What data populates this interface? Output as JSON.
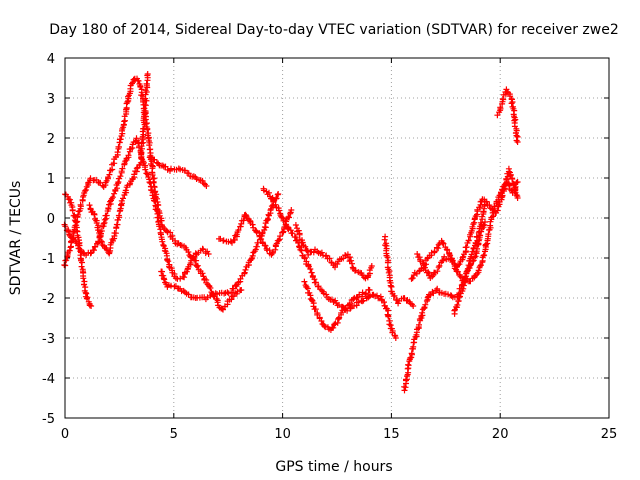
{
  "chart_data": {
    "type": "scatter",
    "title": "Day 180 of 2014, Sidereal Day-to-day VTEC variation (SDTVAR) for receiver zwe2",
    "xlabel": "GPS time / hours",
    "ylabel": "SDTVAR / TECUs",
    "xlim": [
      0,
      25
    ],
    "ylim": [
      -5,
      4
    ],
    "xticks": [
      "0",
      "5",
      "10",
      "15",
      "20",
      "25"
    ],
    "yticks": [
      "-5",
      "-4",
      "-3",
      "-2",
      "-1",
      "0",
      "1",
      "2",
      "3",
      "4"
    ],
    "grid": true,
    "marker": "+",
    "color": "#ff0000",
    "series": [
      {
        "name": "trace-1",
        "points": [
          [
            0,
            0.6
          ],
          [
            0.2,
            0.5
          ],
          [
            0.4,
            0.1
          ],
          [
            0.6,
            -0.4
          ],
          [
            0.8,
            -1.3
          ],
          [
            1.0,
            -2.0
          ],
          [
            1.2,
            -2.2
          ]
        ]
      },
      {
        "name": "trace-2",
        "points": [
          [
            0,
            -0.2
          ],
          [
            0.3,
            -0.5
          ],
          [
            0.6,
            -0.7
          ],
          [
            0.9,
            -0.9
          ],
          [
            1.2,
            -0.9
          ],
          [
            1.5,
            -0.6
          ],
          [
            1.8,
            -0.1
          ],
          [
            2.1,
            0.4
          ],
          [
            2.4,
            0.8
          ],
          [
            2.7,
            1.3
          ],
          [
            3.0,
            1.7
          ],
          [
            3.3,
            2.0
          ],
          [
            3.6,
            1.4
          ],
          [
            3.9,
            0.9
          ],
          [
            4.2,
            0.2
          ],
          [
            4.5,
            -0.6
          ],
          [
            4.8,
            -1.2
          ],
          [
            5.1,
            -1.5
          ],
          [
            5.4,
            -1.5
          ],
          [
            5.7,
            -1.2
          ],
          [
            6.0,
            -0.9
          ],
          [
            6.3,
            -0.8
          ],
          [
            6.6,
            -0.9
          ]
        ]
      },
      {
        "name": "trace-3",
        "points": [
          [
            0,
            -1.2
          ],
          [
            0.3,
            -0.6
          ],
          [
            0.6,
            0.1
          ],
          [
            0.9,
            0.6
          ],
          [
            1.2,
            1.0
          ],
          [
            1.5,
            0.9
          ],
          [
            1.8,
            0.8
          ],
          [
            2.1,
            1.2
          ],
          [
            2.4,
            1.6
          ],
          [
            2.7,
            2.3
          ],
          [
            2.9,
            3.0
          ],
          [
            3.1,
            3.4
          ],
          [
            3.3,
            3.5
          ],
          [
            3.5,
            3.2
          ],
          [
            3.7,
            2.5
          ],
          [
            3.9,
            1.8
          ],
          [
            4.1,
            0.8
          ],
          [
            4.3,
            0.2
          ],
          [
            4.5,
            -0.2
          ],
          [
            4.8,
            -0.4
          ],
          [
            5.1,
            -0.6
          ],
          [
            5.4,
            -0.7
          ],
          [
            5.7,
            -0.9
          ],
          [
            6.0,
            -1.1
          ],
          [
            6.3,
            -1.4
          ],
          [
            6.6,
            -1.7
          ],
          [
            6.9,
            -2.0
          ],
          [
            7.2,
            -2.3
          ],
          [
            7.5,
            -2.1
          ],
          [
            7.8,
            -1.9
          ],
          [
            8.1,
            -1.8
          ]
        ]
      },
      {
        "name": "trace-4",
        "points": [
          [
            1.1,
            0.3
          ],
          [
            1.4,
            0.0
          ],
          [
            1.7,
            -0.6
          ],
          [
            2.0,
            -0.9
          ],
          [
            2.3,
            -0.4
          ],
          [
            2.6,
            0.4
          ],
          [
            2.9,
            0.8
          ],
          [
            3.2,
            1.1
          ],
          [
            3.5,
            1.4
          ],
          [
            3.8,
            3.6
          ]
        ]
      },
      {
        "name": "trace-5",
        "points": [
          [
            3.9,
            1.5
          ],
          [
            4.2,
            1.4
          ],
          [
            4.5,
            1.3
          ],
          [
            4.8,
            1.2
          ],
          [
            5.1,
            1.2
          ],
          [
            5.4,
            1.2
          ],
          [
            5.7,
            1.1
          ],
          [
            6.0,
            1.0
          ],
          [
            6.3,
            0.9
          ],
          [
            6.5,
            0.8
          ]
        ]
      },
      {
        "name": "trace-6",
        "points": [
          [
            4.4,
            -1.3
          ],
          [
            4.7,
            -1.7
          ],
          [
            5.0,
            -1.7
          ],
          [
            5.3,
            -1.8
          ],
          [
            5.6,
            -1.9
          ],
          [
            5.9,
            -2.0
          ],
          [
            6.2,
            -2.0
          ],
          [
            6.5,
            -2.0
          ],
          [
            6.8,
            -1.9
          ],
          [
            7.1,
            -1.9
          ],
          [
            7.4,
            -1.9
          ],
          [
            7.7,
            -1.8
          ],
          [
            8.0,
            -1.6
          ],
          [
            8.3,
            -1.3
          ],
          [
            8.6,
            -1.0
          ],
          [
            8.9,
            -0.6
          ],
          [
            9.2,
            -0.2
          ],
          [
            9.5,
            0.3
          ],
          [
            9.8,
            0.6
          ]
        ]
      },
      {
        "name": "trace-7",
        "points": [
          [
            7.1,
            -0.5
          ],
          [
            7.4,
            -0.6
          ],
          [
            7.7,
            -0.6
          ],
          [
            8.0,
            -0.3
          ],
          [
            8.3,
            0.1
          ],
          [
            8.6,
            -0.2
          ],
          [
            8.9,
            -0.4
          ],
          [
            9.2,
            -0.7
          ],
          [
            9.5,
            -0.9
          ],
          [
            9.8,
            -0.6
          ],
          [
            10.1,
            -0.2
          ],
          [
            10.4,
            0.2
          ]
        ]
      },
      {
        "name": "trace-8",
        "points": [
          [
            9.1,
            0.7
          ],
          [
            9.4,
            0.6
          ],
          [
            9.7,
            0.3
          ],
          [
            10.0,
            0.0
          ],
          [
            10.3,
            -0.3
          ],
          [
            10.6,
            -0.5
          ],
          [
            10.9,
            -0.9
          ],
          [
            11.2,
            -1.2
          ],
          [
            11.5,
            -1.6
          ],
          [
            11.8,
            -1.8
          ],
          [
            12.1,
            -2.0
          ],
          [
            12.4,
            -2.1
          ],
          [
            12.7,
            -2.2
          ],
          [
            13.0,
            -2.3
          ],
          [
            13.3,
            -2.2
          ],
          [
            13.6,
            -2.1
          ],
          [
            13.9,
            -2.0
          ],
          [
            14.2,
            -1.9
          ],
          [
            14.5,
            -2.0
          ],
          [
            14.8,
            -2.3
          ],
          [
            15.0,
            -2.8
          ],
          [
            15.2,
            -3.0
          ]
        ]
      },
      {
        "name": "trace-9",
        "points": [
          [
            11.0,
            -1.6
          ],
          [
            11.3,
            -2.0
          ],
          [
            11.6,
            -2.4
          ],
          [
            11.9,
            -2.7
          ],
          [
            12.2,
            -2.8
          ],
          [
            12.5,
            -2.6
          ],
          [
            12.8,
            -2.3
          ],
          [
            13.1,
            -2.1
          ],
          [
            13.4,
            -2.0
          ],
          [
            13.7,
            -1.9
          ],
          [
            14.0,
            -1.8
          ]
        ]
      },
      {
        "name": "trace-10",
        "points": [
          [
            10.6,
            -0.2
          ],
          [
            10.9,
            -0.6
          ],
          [
            11.2,
            -0.9
          ],
          [
            11.5,
            -0.8
          ],
          [
            11.8,
            -0.9
          ],
          [
            12.1,
            -1.0
          ],
          [
            12.4,
            -1.2
          ],
          [
            12.7,
            -1.0
          ],
          [
            13.0,
            -0.9
          ],
          [
            13.3,
            -1.3
          ],
          [
            13.6,
            -1.4
          ],
          [
            13.9,
            -1.5
          ],
          [
            14.1,
            -1.2
          ]
        ]
      },
      {
        "name": "trace-11",
        "points": [
          [
            14.7,
            -0.5
          ],
          [
            15.0,
            -1.8
          ],
          [
            15.3,
            -2.1
          ],
          [
            15.6,
            -2.0
          ],
          [
            15.8,
            -2.1
          ],
          [
            16.0,
            -2.2
          ]
        ]
      },
      {
        "name": "trace-12",
        "points": [
          [
            15.6,
            -4.3
          ],
          [
            15.8,
            -3.7
          ],
          [
            16.0,
            -3.2
          ],
          [
            16.2,
            -2.8
          ],
          [
            16.4,
            -2.4
          ],
          [
            16.6,
            -2.1
          ],
          [
            16.8,
            -1.9
          ],
          [
            17.1,
            -1.8
          ],
          [
            17.4,
            -1.9
          ],
          [
            17.7,
            -1.9
          ],
          [
            18.0,
            -2.0
          ],
          [
            18.3,
            -1.6
          ],
          [
            18.6,
            -1.2
          ],
          [
            18.9,
            -0.9
          ],
          [
            19.1,
            -0.4
          ],
          [
            19.3,
            -0.1
          ]
        ]
      },
      {
        "name": "trace-13",
        "points": [
          [
            15.9,
            -1.5
          ],
          [
            16.1,
            -1.4
          ],
          [
            16.4,
            -1.3
          ],
          [
            16.7,
            -1.0
          ],
          [
            17.0,
            -0.8
          ],
          [
            17.3,
            -0.6
          ],
          [
            17.6,
            -0.8
          ],
          [
            17.9,
            -1.2
          ],
          [
            18.2,
            -1.5
          ],
          [
            18.5,
            -1.6
          ],
          [
            18.8,
            -1.5
          ],
          [
            19.1,
            -1.2
          ],
          [
            19.4,
            -0.6
          ],
          [
            19.7,
            0.2
          ],
          [
            20.0,
            0.6
          ],
          [
            20.2,
            0.8
          ],
          [
            20.4,
            1.2
          ],
          [
            20.6,
            0.9
          ],
          [
            20.8,
            0.5
          ]
        ]
      },
      {
        "name": "trace-14",
        "points": [
          [
            16.2,
            -0.9
          ],
          [
            16.5,
            -1.2
          ],
          [
            16.8,
            -1.5
          ],
          [
            17.1,
            -1.3
          ],
          [
            17.4,
            -1.0
          ],
          [
            17.7,
            -1.0
          ],
          [
            18.0,
            -1.2
          ],
          [
            18.3,
            -1.0
          ],
          [
            18.6,
            -0.5
          ],
          [
            18.9,
            0.1
          ],
          [
            19.2,
            0.5
          ],
          [
            19.5,
            0.3
          ],
          [
            19.8,
            0.1
          ],
          [
            20.0,
            0.4
          ],
          [
            20.3,
            0.9
          ],
          [
            20.6,
            0.6
          ],
          [
            20.8,
            0.9
          ]
        ]
      },
      {
        "name": "trace-15",
        "points": [
          [
            19.9,
            2.6
          ],
          [
            20.1,
            2.9
          ],
          [
            20.3,
            3.2
          ],
          [
            20.5,
            3.0
          ],
          [
            20.6,
            2.7
          ],
          [
            20.7,
            2.3
          ],
          [
            20.8,
            1.9
          ]
        ]
      },
      {
        "name": "trace-16",
        "points": [
          [
            17.9,
            -2.4
          ],
          [
            18.1,
            -2.0
          ],
          [
            18.3,
            -1.7
          ],
          [
            18.5,
            -1.3
          ],
          [
            18.7,
            -0.9
          ],
          [
            18.9,
            -0.6
          ],
          [
            19.1,
            -0.2
          ],
          [
            19.3,
            0.4
          ]
        ]
      }
    ]
  }
}
